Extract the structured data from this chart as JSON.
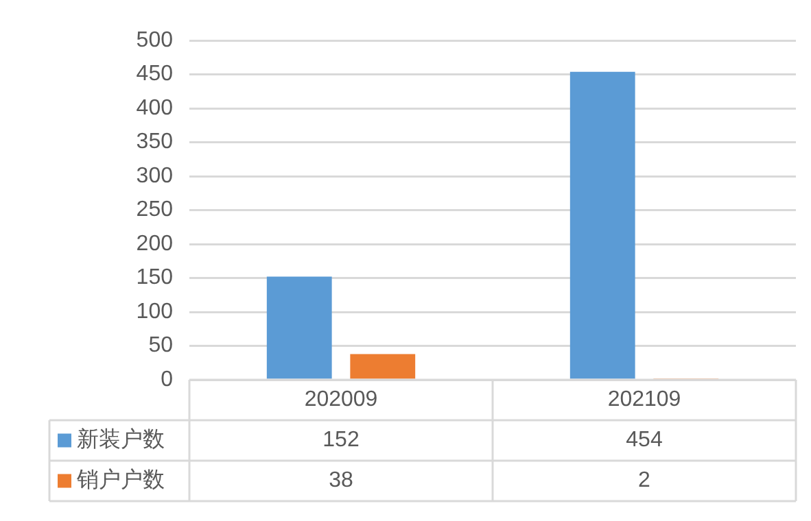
{
  "chart_data": {
    "type": "bar",
    "categories": [
      "202009",
      "202109"
    ],
    "series": [
      {
        "name": "新装户数",
        "color": "#5b9bd5",
        "values": [
          152,
          454
        ]
      },
      {
        "name": "销户户数",
        "color": "#ed7d31",
        "values": [
          38,
          2
        ]
      }
    ],
    "ylim": [
      0,
      500
    ],
    "yticks": [
      0,
      50,
      100,
      150,
      200,
      250,
      300,
      350,
      400,
      450,
      500
    ],
    "grid": "y",
    "legend": "bottom",
    "data_labels": true
  }
}
